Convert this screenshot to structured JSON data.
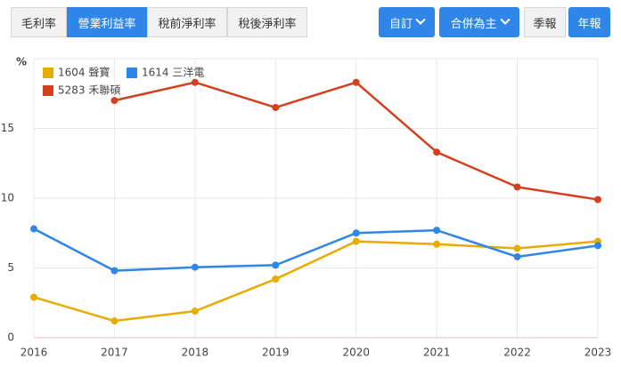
{
  "metric_tabs": {
    "items": [
      "毛利率",
      "營業利益率",
      "稅前淨利率",
      "稅後淨利率"
    ],
    "active": 1
  },
  "dropdowns": [
    "自訂",
    "合併為主"
  ],
  "period_tabs": {
    "items": [
      "季報",
      "年報"
    ],
    "active": 1
  },
  "chart_data": {
    "type": "line",
    "y_label": "%",
    "categories": [
      "2016",
      "2017",
      "2018",
      "2019",
      "2020",
      "2021",
      "2022",
      "2023"
    ],
    "series": [
      {
        "name": "1604 聲寶",
        "color": "#e6ac00",
        "values": [
          2.9,
          1.2,
          1.9,
          4.2,
          6.9,
          6.7,
          6.4,
          6.9
        ]
      },
      {
        "name": "1614 三洋電",
        "color": "#2e86e6",
        "values": [
          7.8,
          4.8,
          5.05,
          5.2,
          7.5,
          7.7,
          5.8,
          6.6
        ]
      },
      {
        "name": "5283 禾聯碩",
        "color": "#d4401f",
        "values": [
          null,
          17.0,
          18.3,
          16.5,
          18.3,
          13.3,
          10.8,
          9.9
        ]
      }
    ],
    "ylim": [
      0,
      20
    ],
    "yticks": [
      0,
      5,
      10,
      15
    ],
    "grid": true
  }
}
